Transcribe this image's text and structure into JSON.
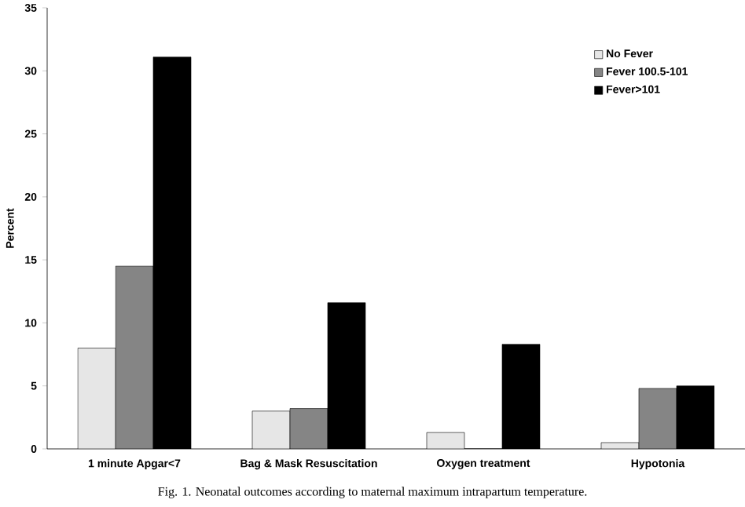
{
  "chart_data": {
    "type": "bar",
    "ylabel": "Percent",
    "categories": [
      "1 minute Apgar<7",
      "Bag & Mask Resuscitation",
      "Oxygen treatment",
      "Hypotonia"
    ],
    "series": [
      {
        "name": "No Fever",
        "color": "#e6e6e6",
        "values": [
          8,
          3,
          1.3,
          0.5
        ]
      },
      {
        "name": "Fever 100.5-101",
        "color": "#858585",
        "values": [
          14.5,
          3.2,
          0,
          4.8
        ]
      },
      {
        "name": "Fever>101",
        "color": "#000000",
        "values": [
          31.1,
          11.6,
          8.3,
          5
        ]
      }
    ],
    "ylim": [
      0,
      35
    ],
    "yticks": [
      0,
      5,
      10,
      15,
      20,
      25,
      30,
      35
    ],
    "grid": false,
    "legend": "top right",
    "annotations": [
      "Fig. 1. Neonatal outcomes according to maternal maximum intrapartum temperature."
    ]
  }
}
